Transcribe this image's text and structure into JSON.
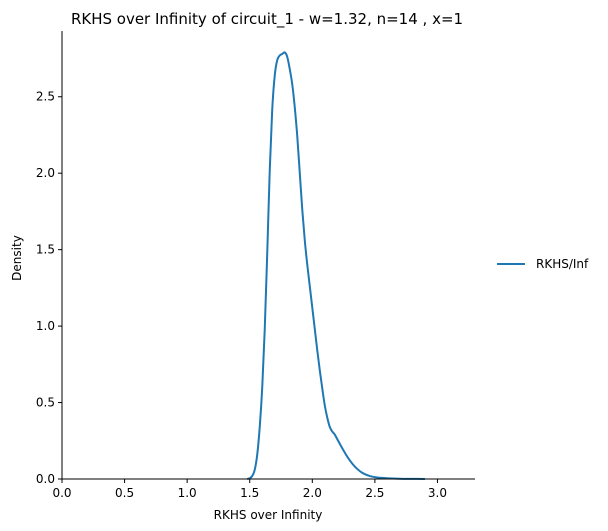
{
  "chart_data": {
    "type": "line",
    "title": "RKHS over Infinity of circuit_1 - w=1.32, n=14 , x=1",
    "xlabel": "RKHS over Infinity",
    "ylabel": "Density",
    "xlim": [
      0.0,
      3.3
    ],
    "ylim": [
      0.0,
      2.93
    ],
    "xticks": [
      0.0,
      0.5,
      1.0,
      1.5,
      2.0,
      2.5,
      3.0
    ],
    "xtick_labels": [
      "0.0",
      "0.5",
      "1.0",
      "1.5",
      "2.0",
      "2.5",
      "3.0"
    ],
    "yticks": [
      0.0,
      0.5,
      1.0,
      1.5,
      2.0,
      2.5
    ],
    "ytick_labels": [
      "0.0",
      "0.5",
      "1.0",
      "1.5",
      "2.0",
      "2.5"
    ],
    "grid": false,
    "legend_position": "right",
    "series": [
      {
        "name": "RKHS/Inf",
        "color": "#1f77b4",
        "x": [
          1.48,
          1.5,
          1.52,
          1.54,
          1.56,
          1.58,
          1.6,
          1.62,
          1.64,
          1.66,
          1.68,
          1.7,
          1.72,
          1.74,
          1.76,
          1.78,
          1.8,
          1.82,
          1.84,
          1.86,
          1.88,
          1.9,
          1.92,
          1.94,
          1.96,
          1.98,
          2.0,
          2.02,
          2.04,
          2.06,
          2.08,
          2.1,
          2.12,
          2.14,
          2.16,
          2.18,
          2.2,
          2.24,
          2.28,
          2.32,
          2.36,
          2.4,
          2.44,
          2.48,
          2.52,
          2.6,
          2.7,
          2.8,
          2.9
        ],
        "values": [
          0.0,
          0.005,
          0.02,
          0.06,
          0.16,
          0.34,
          0.6,
          0.98,
          1.48,
          2.02,
          2.42,
          2.64,
          2.74,
          2.77,
          2.78,
          2.79,
          2.76,
          2.68,
          2.58,
          2.43,
          2.24,
          2.0,
          1.76,
          1.56,
          1.4,
          1.26,
          1.12,
          0.98,
          0.84,
          0.71,
          0.59,
          0.48,
          0.4,
          0.34,
          0.31,
          0.29,
          0.26,
          0.2,
          0.145,
          0.1,
          0.065,
          0.04,
          0.025,
          0.015,
          0.01,
          0.005,
          0.002,
          0.001,
          0.0
        ]
      }
    ]
  }
}
